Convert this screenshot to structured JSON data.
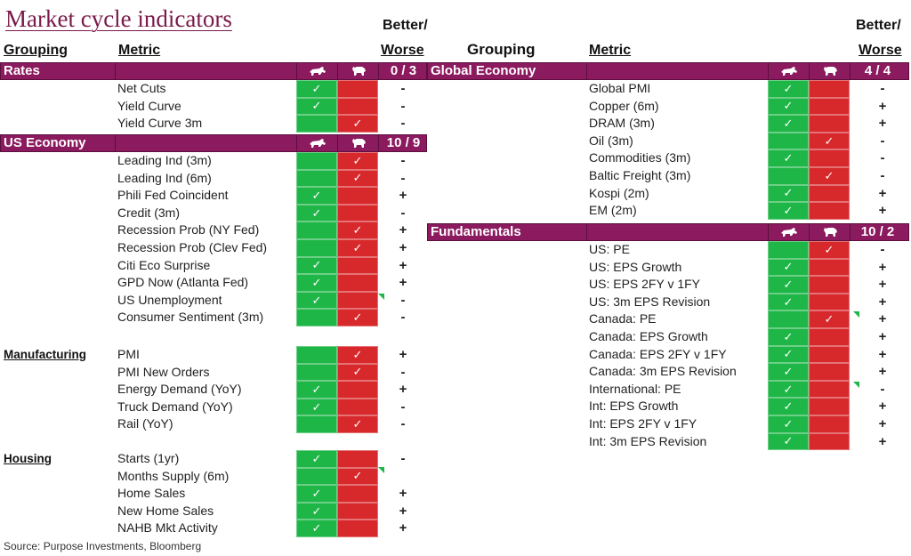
{
  "title": "Market cycle indicators",
  "headers": {
    "grouping": "Grouping",
    "metric": "Metric",
    "better_worse_line1": "Better/",
    "better_worse_line2": "Worse"
  },
  "icons": {
    "bull": "bull-icon",
    "bear": "bear-icon",
    "check": "✓"
  },
  "colors": {
    "band": "#8b1a5f",
    "bull_green": "#1fb648",
    "bear_red": "#d7282c"
  },
  "source": "Source: Purpose Investments, Bloomberg",
  "left_sections": [
    {
      "name": "Rates",
      "score": "0 / 3",
      "band": true,
      "rows": [
        {
          "metric": "Net Cuts",
          "signal": "bull",
          "bw": "-"
        },
        {
          "metric": "Yield Curve",
          "signal": "bull",
          "bw": "-"
        },
        {
          "metric": "Yield Curve 3m",
          "signal": "bear",
          "bw": "-"
        }
      ]
    },
    {
      "name": "US Economy",
      "score": "10 / 9",
      "band": true,
      "rows": [
        {
          "metric": "Leading Ind (3m)",
          "signal": "bear",
          "bw": "-"
        },
        {
          "metric": "Leading Ind (6m)",
          "signal": "bear",
          "bw": "-"
        },
        {
          "metric": "Phili Fed Coincident",
          "signal": "bull",
          "bw": "+"
        },
        {
          "metric": "Credit (3m)",
          "signal": "bull",
          "bw": "-"
        },
        {
          "metric": "Recession Prob (NY Fed)",
          "signal": "bear",
          "bw": "+"
        },
        {
          "metric": "Recession Prob (Clev Fed)",
          "signal": "bear",
          "bw": "+"
        },
        {
          "metric": "Citi Eco Surprise",
          "signal": "bull",
          "bw": "+"
        },
        {
          "metric": "GPD Now (Atlanta Fed)",
          "signal": "bull",
          "bw": "+"
        },
        {
          "metric": "US Unemployment",
          "signal": "bull",
          "bw": "-"
        },
        {
          "metric": "Consumer Sentiment (3m)",
          "signal": "bear",
          "bw": "-"
        }
      ]
    },
    {
      "name": "Manufacturing",
      "band": false,
      "rows": [
        {
          "metric": "PMI",
          "signal": "bear",
          "bw": "+"
        },
        {
          "metric": "PMI New Orders",
          "signal": "bear",
          "bw": "-"
        },
        {
          "metric": "Energy Demand (YoY)",
          "signal": "bull",
          "bw": "+"
        },
        {
          "metric": "Truck Demand (YoY)",
          "signal": "bull",
          "bw": "-"
        },
        {
          "metric": "Rail (YoY)",
          "signal": "bear",
          "bw": "-"
        }
      ]
    },
    {
      "name": "Housing",
      "band": false,
      "rows": [
        {
          "metric": "Starts (1yr)",
          "signal": "bull",
          "bw": "-"
        },
        {
          "metric": "Months Supply (6m)",
          "signal": "bear",
          "bw": ""
        },
        {
          "metric": "Home Sales",
          "signal": "bull",
          "bw": "+"
        },
        {
          "metric": "New Home Sales",
          "signal": "bull",
          "bw": "+"
        },
        {
          "metric": "NAHB Mkt Activity",
          "signal": "bull",
          "bw": "+"
        }
      ]
    }
  ],
  "right_sections": [
    {
      "name": "Global Economy",
      "score": "4 / 4",
      "band": true,
      "rows": [
        {
          "metric": "Global PMI",
          "signal": "bull",
          "bw": "-"
        },
        {
          "metric": "Copper (6m)",
          "signal": "bull",
          "bw": "+"
        },
        {
          "metric": "DRAM (3m)",
          "signal": "bull",
          "bw": "+"
        },
        {
          "metric": "Oil (3m)",
          "signal": "bear",
          "bw": "-"
        },
        {
          "metric": "Commodities (3m)",
          "signal": "bull",
          "bw": "-"
        },
        {
          "metric": "Baltic Freight (3m)",
          "signal": "bear",
          "bw": "-"
        },
        {
          "metric": "Kospi (2m)",
          "signal": "bull",
          "bw": "+"
        },
        {
          "metric": "EM (2m)",
          "signal": "bull",
          "bw": "+"
        }
      ]
    },
    {
      "name": "Fundamentals",
      "score": "10 / 2",
      "band": true,
      "rows": [
        {
          "metric": "US: PE",
          "signal": "bear",
          "bw": "-"
        },
        {
          "metric": "US: EPS Growth",
          "signal": "bull",
          "bw": "+"
        },
        {
          "metric": "US: EPS 2FY v 1FY",
          "signal": "bull",
          "bw": "+"
        },
        {
          "metric": "US: 3m EPS Revision",
          "signal": "bull",
          "bw": "+"
        },
        {
          "metric": "Canada: PE",
          "signal": "bear",
          "bw": "+"
        },
        {
          "metric": "Canada: EPS Growth",
          "signal": "bull",
          "bw": "+"
        },
        {
          "metric": "Canada: EPS 2FY v 1FY",
          "signal": "bull",
          "bw": "+"
        },
        {
          "metric": "Canada: 3m EPS Revision",
          "signal": "bull",
          "bw": "+"
        },
        {
          "metric": "International: PE",
          "signal": "bull",
          "bw": "-"
        },
        {
          "metric": "Int: EPS Growth",
          "signal": "bull",
          "bw": "+"
        },
        {
          "metric": "Int: EPS 2FY v 1FY",
          "signal": "bull",
          "bw": "+"
        },
        {
          "metric": "Int: 3m EPS Revision",
          "signal": "bull",
          "bw": "+"
        }
      ]
    }
  ]
}
